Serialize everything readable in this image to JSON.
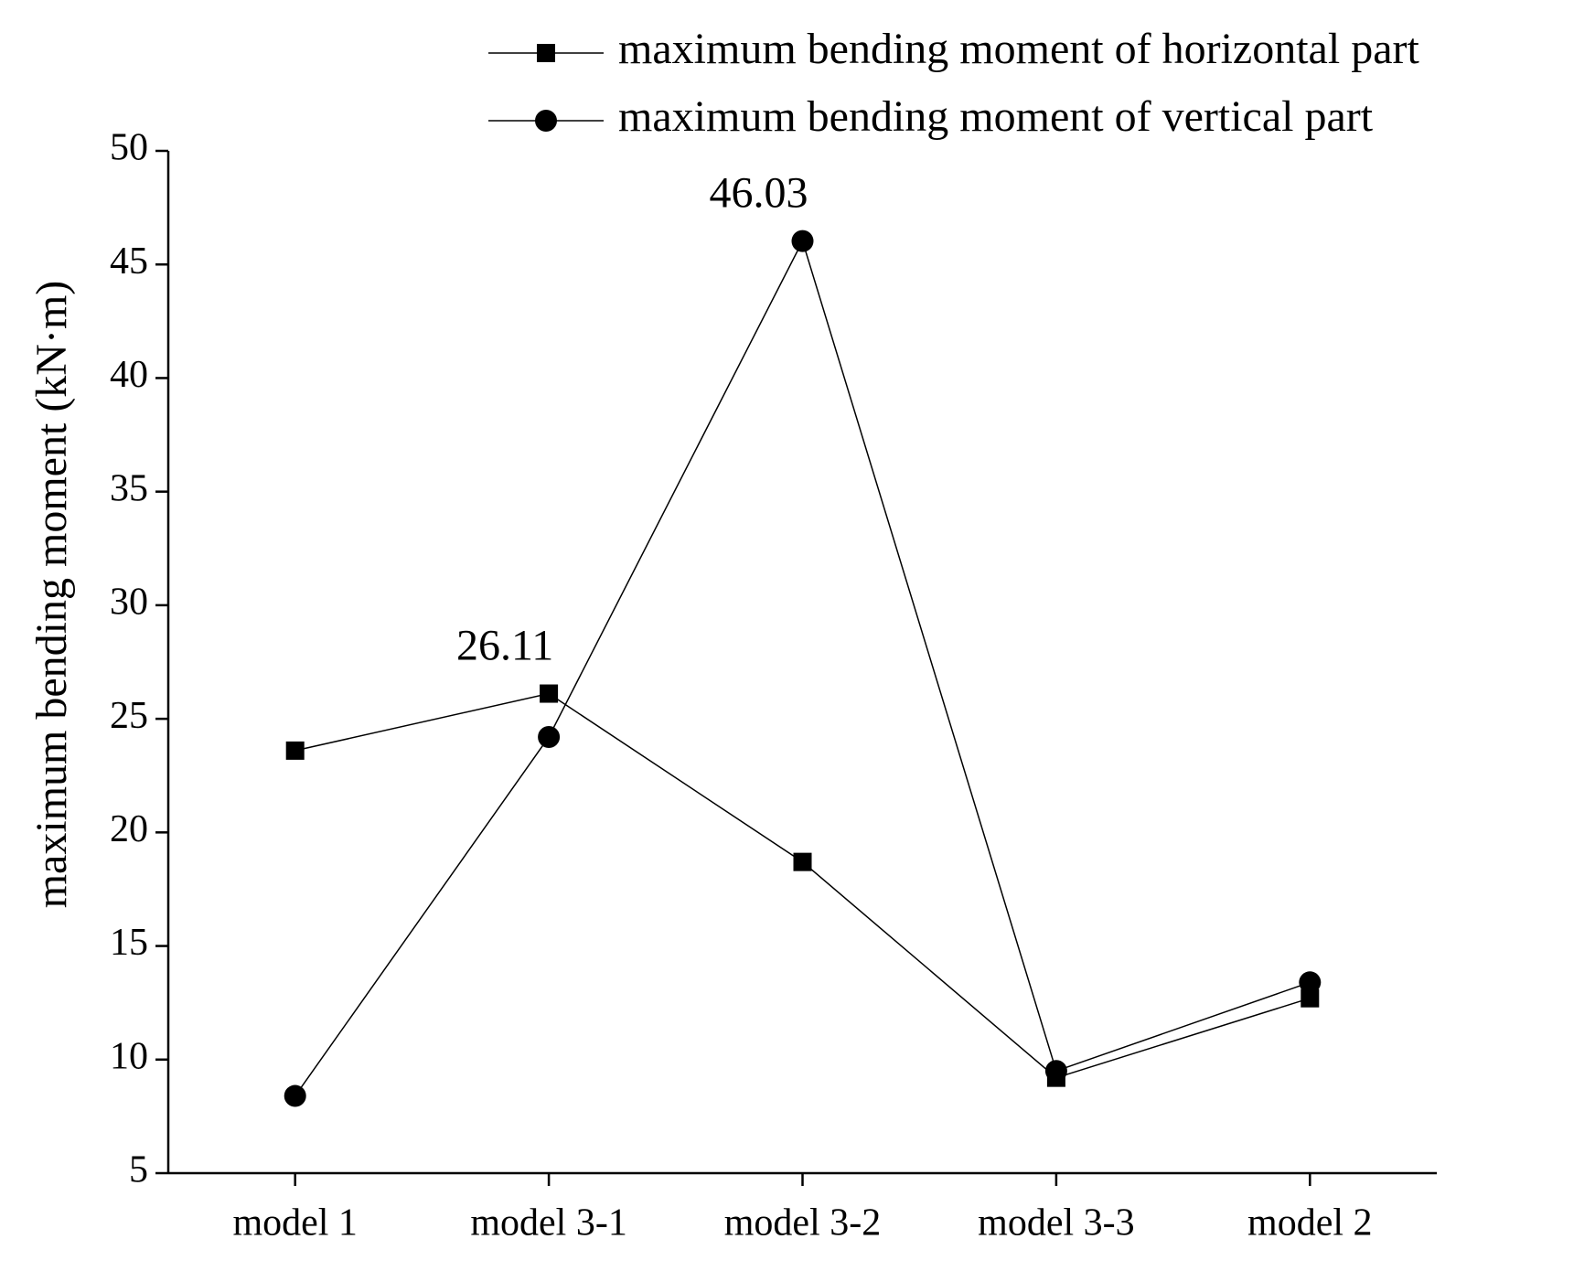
{
  "chart_data": {
    "type": "line",
    "y_label": "maximum bending moment (kN·m)",
    "categories": [
      "model 1",
      "model 3-1",
      "model 3-2",
      "model 3-3",
      "model 2"
    ],
    "series": [
      {
        "name": "maximum bending moment of horizontal part",
        "color": "#000000",
        "marker": "square",
        "values": [
          23.6,
          26.11,
          18.7,
          9.2,
          12.7
        ],
        "value_labels": [
          null,
          "26.11",
          null,
          null,
          null
        ]
      },
      {
        "name": "maximum bending moment of vertical part",
        "color": "#000000",
        "marker": "circle",
        "values": [
          8.4,
          24.2,
          46.03,
          9.5,
          13.4
        ],
        "value_labels": [
          null,
          null,
          "46.03",
          null,
          null
        ]
      }
    ],
    "ylim": [
      5,
      50
    ],
    "yticks": [
      5,
      10,
      15,
      20,
      25,
      30,
      35,
      40,
      45,
      50
    ],
    "grid": false
  }
}
